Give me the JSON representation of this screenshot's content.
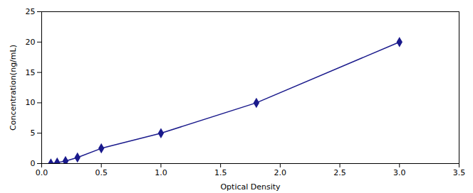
{
  "chart_data": {
    "type": "line",
    "x": [
      0.077,
      0.13,
      0.2,
      0.3,
      0.5,
      1.0,
      1.8,
      3.0
    ],
    "values": [
      0.0,
      0.16,
      0.4,
      1.0,
      2.5,
      5.0,
      10.0,
      20.0
    ],
    "color": "#1a1a8c",
    "marker": "diamond",
    "line_style": "solid",
    "xlabel": "Optical Density",
    "ylabel": "Concentration(ng/mL)",
    "xlim": [
      0,
      3.5
    ],
    "ylim": [
      0,
      25
    ],
    "xticks": [
      {
        "value": 0,
        "label": "0.0"
      },
      0.5,
      {
        "value": 1.0,
        "label": "1.0"
      },
      1.5,
      {
        "value": 2.0,
        "label": "2.0"
      },
      2.5,
      {
        "value": 3.0,
        "label": "3.0"
      },
      3.5
    ],
    "yticks": [
      0,
      5,
      10,
      15,
      20,
      25
    ],
    "grid": false
  }
}
